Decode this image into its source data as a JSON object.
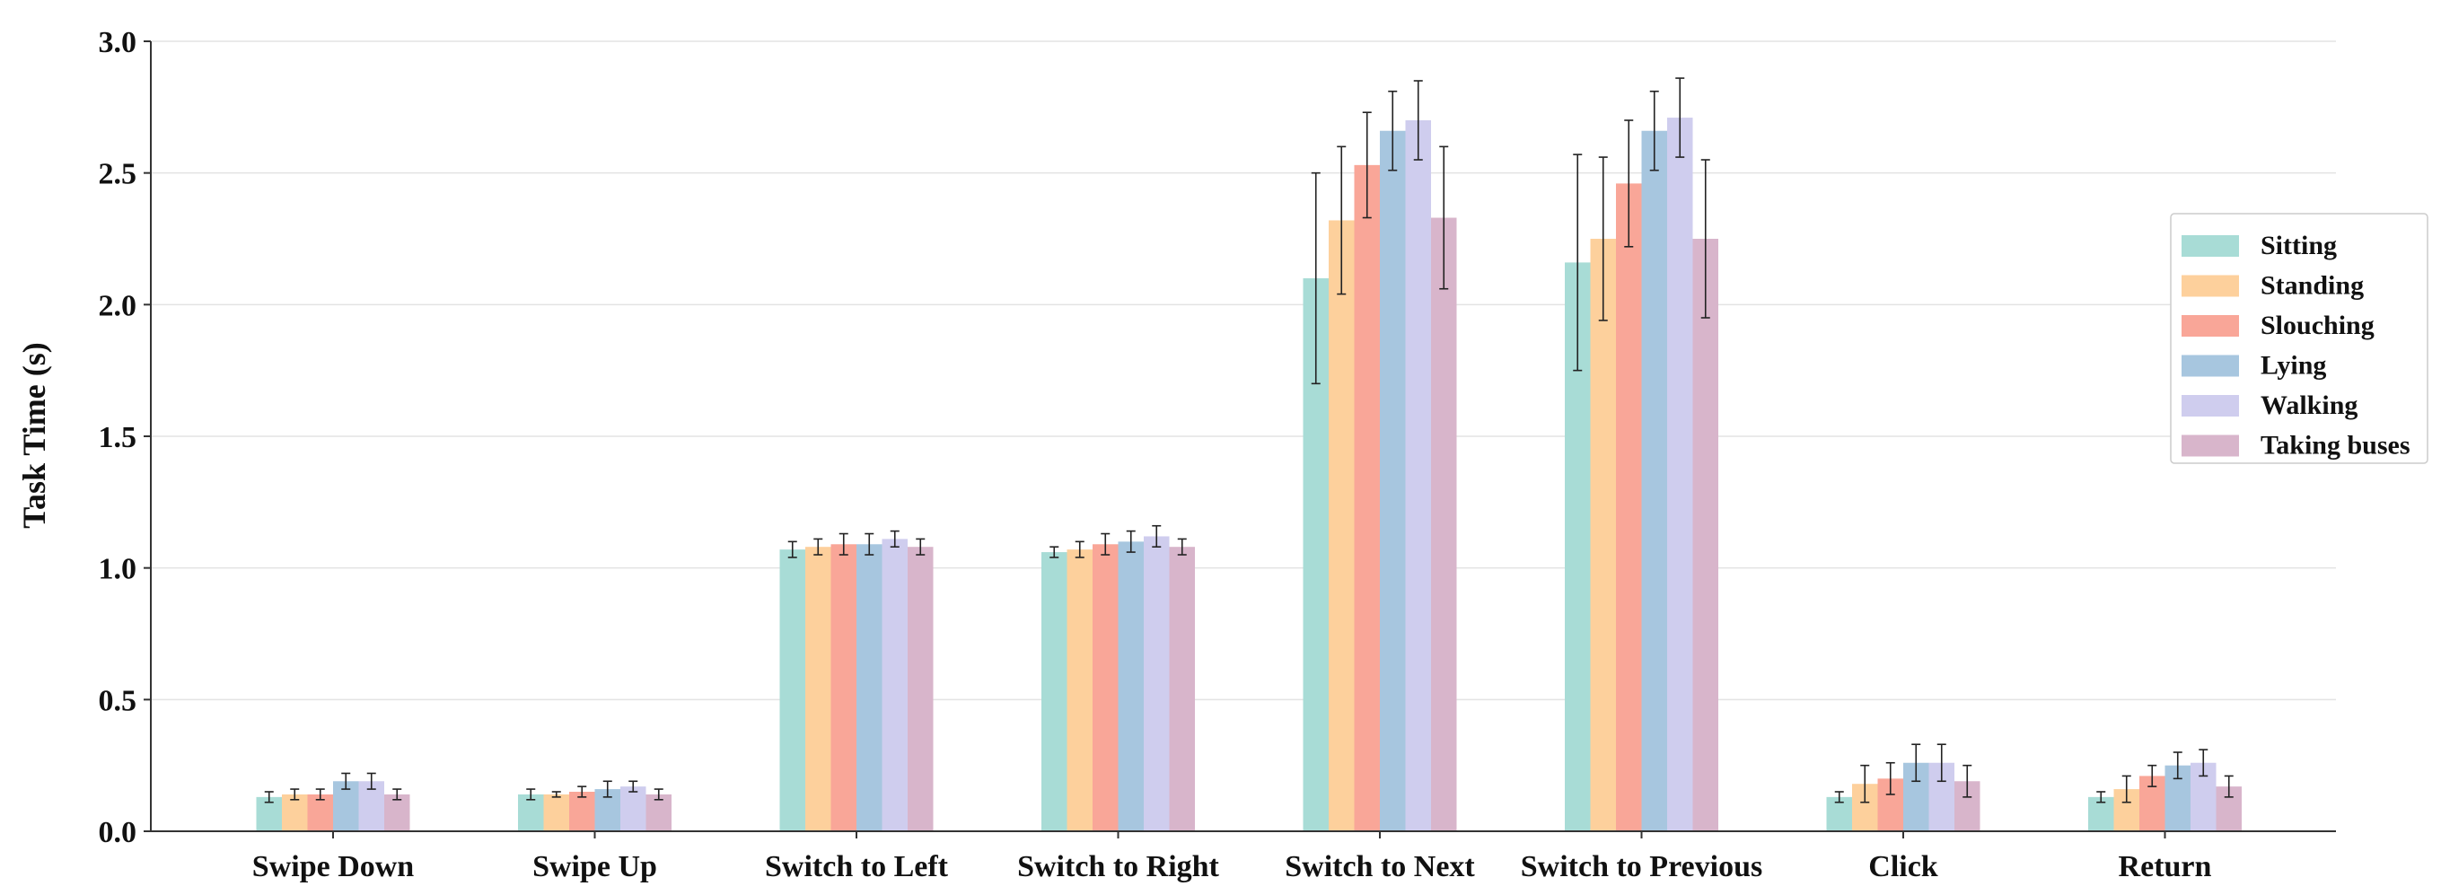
{
  "chart_data": {
    "type": "bar",
    "title": "",
    "xlabel": "",
    "ylabel": "Task Time (s)",
    "ylim": [
      0,
      3.0
    ],
    "yticks": [
      "0.0",
      "0.5",
      "1.0",
      "1.5",
      "2.0",
      "2.5",
      "3.0"
    ],
    "grid": "horizontal",
    "error_bars": true,
    "legend_position": "right",
    "categories": [
      "Swipe Down",
      "Swipe Up",
      "Switch to Left",
      "Switch to Right",
      "Switch to Next",
      "Switch to Previous",
      "Click",
      "Return"
    ],
    "series": [
      {
        "name": "Sitting",
        "color": "#a8dcd6",
        "values": [
          0.13,
          0.14,
          1.07,
          1.06,
          2.1,
          2.16,
          0.13,
          0.13
        ],
        "errors": [
          0.02,
          0.02,
          0.03,
          0.02,
          0.4,
          0.41,
          0.02,
          0.02
        ]
      },
      {
        "name": "Standing",
        "color": "#fdd09c",
        "values": [
          0.14,
          0.14,
          1.08,
          1.07,
          2.32,
          2.25,
          0.18,
          0.16
        ],
        "errors": [
          0.02,
          0.01,
          0.03,
          0.03,
          0.28,
          0.31,
          0.07,
          0.05
        ]
      },
      {
        "name": "Slouching",
        "color": "#f9a698",
        "values": [
          0.14,
          0.15,
          1.09,
          1.09,
          2.53,
          2.46,
          0.2,
          0.21
        ],
        "errors": [
          0.02,
          0.02,
          0.04,
          0.04,
          0.2,
          0.24,
          0.06,
          0.04
        ]
      },
      {
        "name": "Lying",
        "color": "#a7c6df",
        "values": [
          0.19,
          0.16,
          1.09,
          1.1,
          2.66,
          2.66,
          0.26,
          0.25
        ],
        "errors": [
          0.03,
          0.03,
          0.04,
          0.04,
          0.15,
          0.15,
          0.07,
          0.05
        ]
      },
      {
        "name": "Walking",
        "color": "#cfcdee",
        "values": [
          0.19,
          0.17,
          1.11,
          1.12,
          2.7,
          2.71,
          0.26,
          0.26
        ],
        "errors": [
          0.03,
          0.02,
          0.03,
          0.04,
          0.15,
          0.15,
          0.07,
          0.05
        ]
      },
      {
        "name": "Taking buses",
        "color": "#d8b5cb",
        "values": [
          0.14,
          0.14,
          1.08,
          1.08,
          2.33,
          2.25,
          0.19,
          0.17
        ],
        "errors": [
          0.02,
          0.02,
          0.03,
          0.03,
          0.27,
          0.3,
          0.06,
          0.04
        ]
      }
    ]
  }
}
